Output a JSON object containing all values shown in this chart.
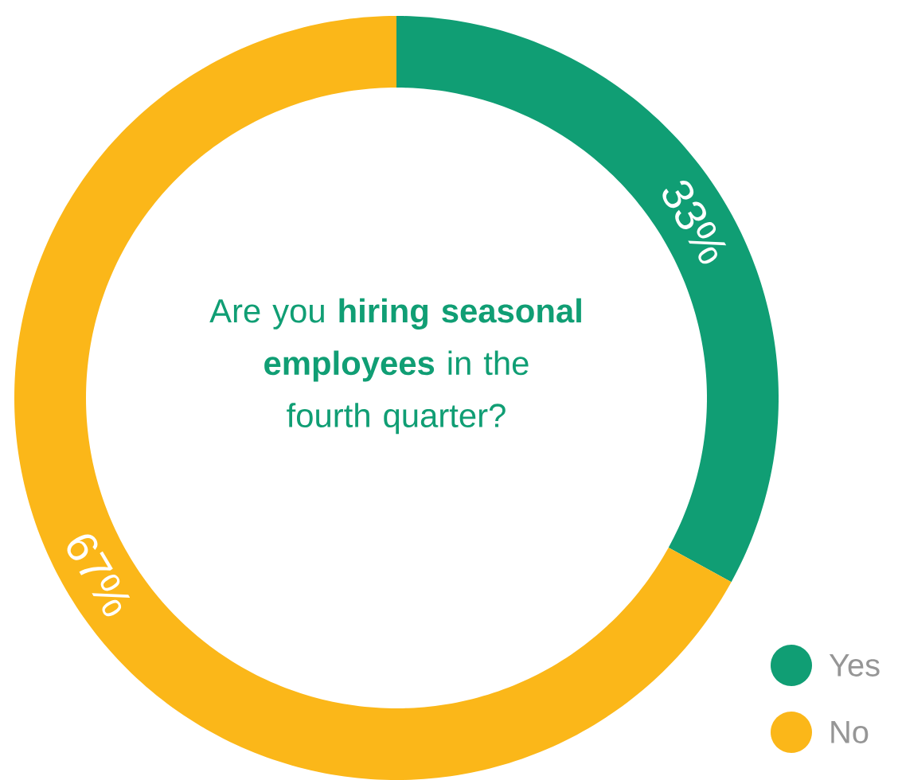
{
  "chart_data": {
    "type": "donut",
    "title": "Are you **hiring seasonal employees** in the fourth quarter?",
    "categories": [
      "Yes",
      "No"
    ],
    "values": [
      33,
      67
    ],
    "colors": [
      "#109e74",
      "#fbb719"
    ],
    "value_labels": [
      "33%",
      "67%"
    ],
    "legend": "bottom right"
  }
}
